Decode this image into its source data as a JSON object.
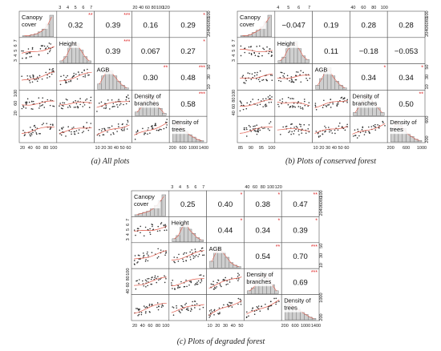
{
  "captions": {
    "a": {
      "label": "(a)",
      "text": "All plots"
    },
    "b": {
      "label": "(b)",
      "text": "Plots of conserved forest"
    },
    "c": {
      "label": "(c)",
      "text": "Plots of degraded forest"
    }
  },
  "colors": {
    "significance": "#dd2222",
    "lowess": "#e05a4a",
    "hist": "#cfcfcf",
    "points": "#333333"
  },
  "chart_data": [
    {
      "type": "scatter-matrix",
      "panel": "a",
      "variables": [
        "Canopy cover",
        "Height",
        "AGB",
        "Density of branches",
        "Density of trees"
      ],
      "correlations": [
        {
          "row": 0,
          "col": 1,
          "value": "0.32",
          "sig": "**"
        },
        {
          "row": 0,
          "col": 2,
          "value": "0.39",
          "sig": "***"
        },
        {
          "row": 0,
          "col": 3,
          "value": "0.16",
          "sig": ""
        },
        {
          "row": 0,
          "col": 4,
          "value": "0.29",
          "sig": "*"
        },
        {
          "row": 1,
          "col": 2,
          "value": "0.39",
          "sig": "***"
        },
        {
          "row": 1,
          "col": 3,
          "value": "0.067",
          "sig": ""
        },
        {
          "row": 1,
          "col": 4,
          "value": "0.27",
          "sig": "*"
        },
        {
          "row": 2,
          "col": 3,
          "value": "0.30",
          "sig": "**"
        },
        {
          "row": 2,
          "col": 4,
          "value": "0.48",
          "sig": "***"
        },
        {
          "row": 3,
          "col": 4,
          "value": "0.58",
          "sig": "***"
        }
      ],
      "axis_ticks": {
        "bottom": [
          [
            "20",
            "40",
            "60",
            "80",
            "100"
          ],
          [],
          [
            "10",
            "20",
            "30",
            "40",
            "50",
            "60"
          ],
          [],
          [
            "200",
            "600",
            "1000",
            "1400"
          ]
        ],
        "top": [
          [],
          [
            "3",
            "4",
            "5",
            "6",
            "7"
          ],
          [],
          [
            "20",
            "40",
            "60",
            "80",
            "100",
            "120"
          ],
          []
        ],
        "left": [
          [],
          [
            "3",
            "4",
            "5",
            "6",
            "7"
          ],
          [],
          [
            "20",
            "60",
            "100"
          ],
          []
        ],
        "right": [
          [
            "20",
            "40",
            "60",
            "80",
            "100"
          ],
          [],
          [
            "10",
            "30",
            "50"
          ],
          [],
          []
        ]
      },
      "histograms": [
        [
          1,
          1,
          2,
          3,
          5,
          8,
          13,
          22
        ],
        [
          2,
          6,
          14,
          20,
          18,
          12,
          6,
          2
        ],
        [
          4,
          10,
          16,
          14,
          10,
          6,
          3,
          1
        ],
        [
          3,
          7,
          12,
          18,
          16,
          10,
          6,
          2
        ],
        [
          14,
          18,
          12,
          9,
          6,
          4,
          2,
          1
        ]
      ]
    },
    {
      "type": "scatter-matrix",
      "panel": "b",
      "variables": [
        "Canopy cover",
        "Height",
        "AGB",
        "Density of branches",
        "Density of trees"
      ],
      "correlations": [
        {
          "row": 0,
          "col": 1,
          "value": "−0.047",
          "sig": ""
        },
        {
          "row": 0,
          "col": 2,
          "value": "0.19",
          "sig": ""
        },
        {
          "row": 0,
          "col": 3,
          "value": "0.28",
          "sig": ""
        },
        {
          "row": 0,
          "col": 4,
          "value": "0.28",
          "sig": ""
        },
        {
          "row": 1,
          "col": 2,
          "value": "0.11",
          "sig": ""
        },
        {
          "row": 1,
          "col": 3,
          "value": "−0.18",
          "sig": ""
        },
        {
          "row": 1,
          "col": 4,
          "value": "−0.053",
          "sig": ""
        },
        {
          "row": 2,
          "col": 3,
          "value": "0.34",
          "sig": "*"
        },
        {
          "row": 2,
          "col": 4,
          "value": "0.34",
          "sig": "*"
        },
        {
          "row": 3,
          "col": 4,
          "value": "0.50",
          "sig": "**"
        }
      ],
      "axis_ticks": {
        "bottom": [
          [
            "85",
            "90",
            "95",
            "100"
          ],
          [],
          [
            "10",
            "20",
            "30",
            "40",
            "50",
            "60"
          ],
          [],
          [
            "200",
            "600",
            "1000"
          ]
        ],
        "top": [
          [],
          [
            "4",
            "5",
            "6",
            "7"
          ],
          [],
          [
            "40",
            "60",
            "80",
            "100"
          ],
          []
        ],
        "left": [
          [],
          [
            "3",
            "4",
            "5",
            "6",
            "7"
          ],
          [],
          [
            "40",
            "60",
            "80",
            "100"
          ],
          []
        ],
        "right": [
          [
            "20",
            "40",
            "60",
            "80",
            "100"
          ],
          [],
          [
            "10",
            "30",
            "50"
          ],
          [],
          [
            "200",
            "600"
          ]
        ]
      },
      "histograms": [
        [
          1,
          1,
          2,
          4,
          6,
          9,
          14,
          20
        ],
        [
          2,
          5,
          12,
          16,
          18,
          12,
          6,
          3
        ],
        [
          3,
          8,
          14,
          16,
          10,
          6,
          3,
          1
        ],
        [
          2,
          6,
          10,
          14,
          12,
          8,
          5,
          2
        ],
        [
          10,
          16,
          13,
          10,
          6,
          4,
          2,
          1
        ]
      ]
    },
    {
      "type": "scatter-matrix",
      "panel": "c",
      "variables": [
        "Canopy cover",
        "Height",
        "AGB",
        "Density of branches",
        "Density of trees"
      ],
      "correlations": [
        {
          "row": 0,
          "col": 1,
          "value": "0.25",
          "sig": ""
        },
        {
          "row": 0,
          "col": 2,
          "value": "0.40",
          "sig": "*"
        },
        {
          "row": 0,
          "col": 3,
          "value": "0.38",
          "sig": "*"
        },
        {
          "row": 0,
          "col": 4,
          "value": "0.47",
          "sig": "**"
        },
        {
          "row": 1,
          "col": 2,
          "value": "0.44",
          "sig": "*"
        },
        {
          "row": 1,
          "col": 3,
          "value": "0.34",
          "sig": "*"
        },
        {
          "row": 1,
          "col": 4,
          "value": "0.39",
          "sig": "*"
        },
        {
          "row": 2,
          "col": 3,
          "value": "0.54",
          "sig": "**"
        },
        {
          "row": 2,
          "col": 4,
          "value": "0.70",
          "sig": "***"
        },
        {
          "row": 3,
          "col": 4,
          "value": "0.69",
          "sig": "***"
        }
      ],
      "axis_ticks": {
        "bottom": [
          [
            "20",
            "40",
            "60",
            "80",
            "100"
          ],
          [],
          [
            "10",
            "20",
            "30",
            "40",
            "50"
          ],
          [],
          [
            "200",
            "600",
            "1000",
            "1400"
          ]
        ],
        "top": [
          [],
          [
            "3",
            "4",
            "5",
            "6",
            "7"
          ],
          [],
          [
            "40",
            "60",
            "80",
            "100",
            "120"
          ],
          []
        ],
        "left": [
          [],
          [
            "3",
            "4",
            "5",
            "6",
            "7"
          ],
          [],
          [
            "40",
            "60",
            "80",
            "100"
          ],
          []
        ],
        "right": [
          [
            "20",
            "40",
            "60",
            "80",
            "100"
          ],
          [],
          [
            "10",
            "30",
            "50"
          ],
          [],
          [
            "200",
            "1000"
          ]
        ]
      },
      "histograms": [
        [
          1,
          2,
          3,
          4,
          6,
          9,
          13,
          18
        ],
        [
          3,
          6,
          14,
          20,
          12,
          8,
          4,
          2
        ],
        [
          5,
          12,
          16,
          12,
          8,
          4,
          2,
          1
        ],
        [
          2,
          4,
          8,
          12,
          14,
          10,
          6,
          2
        ],
        [
          16,
          12,
          10,
          8,
          6,
          4,
          2,
          1
        ]
      ]
    }
  ]
}
